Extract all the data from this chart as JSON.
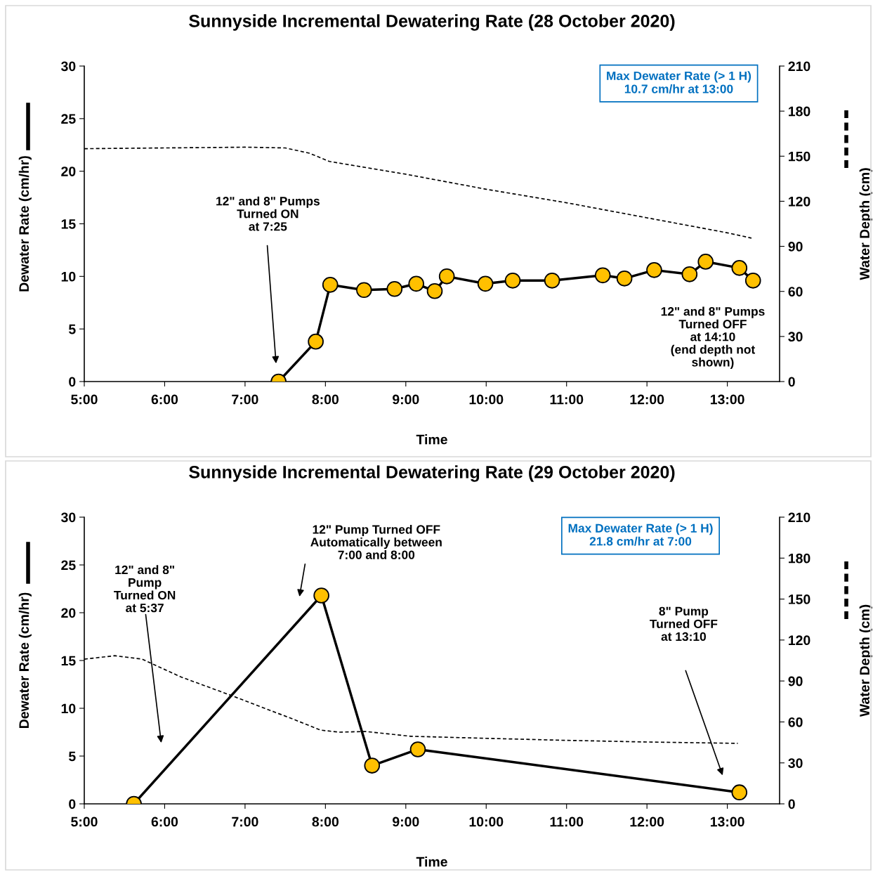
{
  "chart_data": [
    {
      "type": "line",
      "title": "Sunnyside Incremental Dewatering Rate (28 October 2020)",
      "xlabel": "Time",
      "ylabel": "Dewater Rate (cm/hr)",
      "y2label": "Water Depth (cm)",
      "series": [
        {
          "type": "line",
          "color": "#ffc000",
          "marker": "circle",
          "line_style": "solid",
          "x": [
            7.417,
            7.88,
            8.06,
            8.48,
            8.86,
            9.13,
            9.36,
            9.51,
            9.99,
            10.33,
            10.82,
            11.45,
            11.72,
            12.09,
            12.53,
            12.73,
            13.15,
            13.32
          ],
          "values": [
            0,
            3.8,
            9.2,
            8.7,
            8.8,
            9.3,
            8.6,
            10.0,
            9.3,
            9.6,
            9.6,
            10.1,
            9.8,
            10.6,
            10.2,
            11.4,
            10.8,
            9.6
          ]
        },
        {
          "type": "line",
          "axis": "y2",
          "color": "#000000",
          "marker": "none",
          "line_style": "dashed",
          "x": [
            5,
            6,
            7,
            7.5,
            7.8,
            8.05,
            9,
            10,
            11,
            12,
            13,
            13.3
          ],
          "values": [
            155,
            155.5,
            156,
            155.5,
            152,
            146.5,
            138,
            128,
            119,
            109,
            99,
            95.5
          ]
        }
      ],
      "xlim": [
        5,
        13.65
      ],
      "xticks": [
        {
          "value": 5,
          "label": "5:00"
        },
        {
          "value": 6,
          "label": "6:00"
        },
        {
          "value": 7,
          "label": "7:00"
        },
        {
          "value": 8,
          "label": "8:00"
        },
        {
          "value": 9,
          "label": "9:00"
        },
        {
          "value": 10,
          "label": "10:00"
        },
        {
          "value": 11,
          "label": "11:00"
        },
        {
          "value": 12,
          "label": "12:00"
        },
        {
          "value": 13,
          "label": "13:00"
        }
      ],
      "ylim": [
        0,
        30
      ],
      "yticks": [
        0,
        5,
        10,
        15,
        20,
        25,
        30
      ],
      "y2lim": [
        0,
        210
      ],
      "y2ticks": [
        0,
        30,
        60,
        90,
        120,
        150,
        180,
        210
      ],
      "grid": false,
      "legend": false,
      "annotations": [
        "12\" and 8\" Pumps\nTurned ON\nat 7:25",
        "12\" and 8\" Pumps\nTurned OFF\nat 14:10\n(end depth not\nshown)",
        "Max Dewater Rate (> 1 H)\n10.7 cm/hr at 13:00"
      ]
    },
    {
      "type": "line",
      "title": "Sunnyside Incremental Dewatering Rate (29 October 2020)",
      "xlabel": "Time",
      "ylabel": "Dewater Rate (cm/hr)",
      "y2label": "Water Depth (cm)",
      "series": [
        {
          "type": "line",
          "color": "#ffc000",
          "marker": "circle",
          "line_style": "solid",
          "x": [
            5.617,
            7.95,
            8.58,
            9.15,
            13.15
          ],
          "values": [
            0,
            21.8,
            4.0,
            5.7,
            1.2
          ]
        },
        {
          "type": "line",
          "axis": "y2",
          "color": "#000000",
          "marker": "none",
          "line_style": "dashed",
          "x": [
            5,
            5.38,
            5.72,
            6.2,
            6.8,
            7.6,
            7.94,
            8.17,
            8.5,
            9.06,
            10,
            11,
            12,
            13.13
          ],
          "values": [
            106,
            108.5,
            106,
            93,
            80,
            62,
            54,
            52.5,
            53,
            49.5,
            48,
            46.5,
            45.3,
            44.3
          ]
        }
      ],
      "xlim": [
        5,
        13.65
      ],
      "xticks": [
        {
          "value": 5,
          "label": "5:00"
        },
        {
          "value": 6,
          "label": "6:00"
        },
        {
          "value": 7,
          "label": "7:00"
        },
        {
          "value": 8,
          "label": "8:00"
        },
        {
          "value": 9,
          "label": "9:00"
        },
        {
          "value": 10,
          "label": "10:00"
        },
        {
          "value": 11,
          "label": "11:00"
        },
        {
          "value": 12,
          "label": "12:00"
        },
        {
          "value": 13,
          "label": "13:00"
        }
      ],
      "ylim": [
        0,
        30
      ],
      "yticks": [
        0,
        5,
        10,
        15,
        20,
        25,
        30
      ],
      "y2lim": [
        0,
        210
      ],
      "y2ticks": [
        0,
        30,
        60,
        90,
        120,
        150,
        180,
        210
      ],
      "grid": false,
      "legend": false,
      "annotations": [
        "12\" and 8\"\nPump\nTurned ON\nat 5:37",
        "12\" Pump Turned OFF\nAutomatically between\n7:00 and 8:00",
        "8\" Pump\nTurned OFF\nat 13:10",
        "Max Dewater Rate (> 1 H)\n21.8 cm/hr at 7:00"
      ]
    }
  ]
}
